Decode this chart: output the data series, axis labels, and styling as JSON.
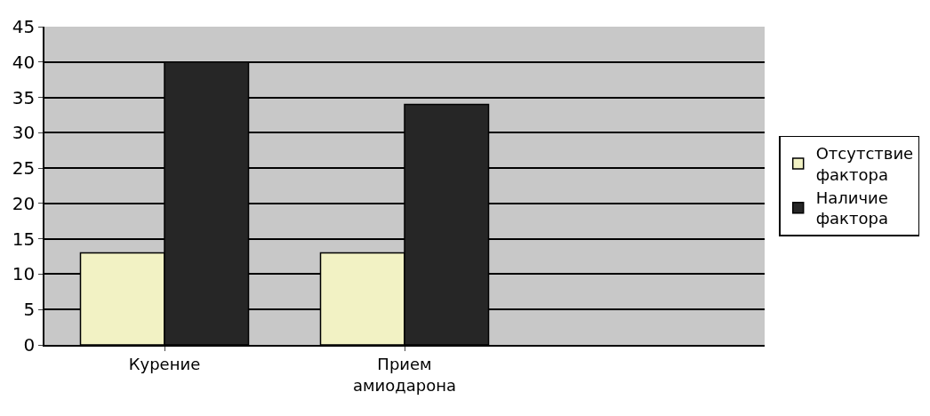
{
  "chart_data": {
    "type": "bar",
    "categories": [
      "Курение",
      "Прием амиодарона",
      null
    ],
    "series": [
      {
        "name": "Отсутствие фактора",
        "color": "#f2f2c4",
        "values": [
          13,
          13,
          null
        ]
      },
      {
        "name": "Наличие фактора",
        "color": "#262626",
        "values": [
          40,
          34,
          null
        ]
      }
    ],
    "ylim": [
      0,
      45
    ],
    "yticks": [
      0,
      5,
      10,
      15,
      20,
      25,
      30,
      35,
      40,
      45
    ],
    "grid": "y",
    "legend": "right"
  }
}
